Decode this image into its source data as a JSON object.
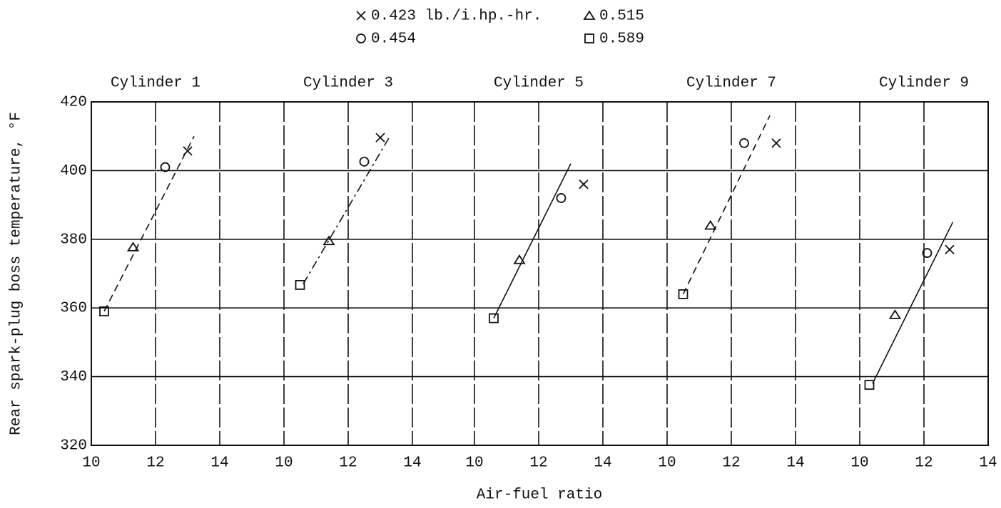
{
  "chart_data": [
    {
      "type": "scatter",
      "title": "Cylinder 1",
      "ylabel": "Rear spark-plug boss temperature, °F",
      "xlabel": "Air-fuel ratio",
      "xlim": [
        10,
        14
      ],
      "xticks": [
        10,
        12,
        14
      ],
      "ylim": [
        320,
        420
      ],
      "yticks": [
        320,
        340,
        360,
        380,
        400,
        420
      ],
      "grid": true,
      "series": [
        {
          "name": "0.423 lb./i.hp.-hr.",
          "marker": "x",
          "x": [
            13.0
          ],
          "values": [
            405.7
          ]
        },
        {
          "name": "0.454",
          "marker": "o",
          "x": [
            12.3
          ],
          "values": [
            401
          ]
        },
        {
          "name": "0.515",
          "marker": "triangle",
          "x": [
            11.3
          ],
          "values": [
            377.7
          ]
        },
        {
          "name": "0.589",
          "marker": "square",
          "x": [
            10.4
          ],
          "values": [
            359
          ]
        }
      ],
      "fit": {
        "x": [
          10.4,
          13.2
        ],
        "values": [
          359,
          410
        ],
        "style": "dashed"
      }
    },
    {
      "type": "scatter",
      "title": "Cylinder 3",
      "xlim": [
        10,
        14
      ],
      "xticks": [
        10,
        12,
        14
      ],
      "ylim": [
        320,
        420
      ],
      "yticks": [
        320,
        340,
        360,
        380,
        400,
        420
      ],
      "grid": true,
      "series": [
        {
          "marker": "x",
          "x": [
            13.0
          ],
          "values": [
            409.6
          ]
        },
        {
          "marker": "o",
          "x": [
            12.5
          ],
          "values": [
            402.6
          ]
        },
        {
          "marker": "triangle",
          "x": [
            11.4
          ],
          "values": [
            379.5
          ]
        },
        {
          "marker": "square",
          "x": [
            10.5
          ],
          "values": [
            366.7
          ]
        }
      ],
      "fit": {
        "x": [
          10.6,
          13.3
        ],
        "values": [
          367,
          410
        ],
        "style": "dashdot"
      }
    },
    {
      "type": "scatter",
      "title": "Cylinder 5",
      "xlim": [
        10,
        14
      ],
      "xticks": [
        10,
        12,
        14
      ],
      "ylim": [
        320,
        420
      ],
      "yticks": [
        320,
        340,
        360,
        380,
        400,
        420
      ],
      "grid": true,
      "series": [
        {
          "marker": "x",
          "x": [
            13.4
          ],
          "values": [
            396
          ]
        },
        {
          "marker": "o",
          "x": [
            12.7
          ],
          "values": [
            392
          ]
        },
        {
          "marker": "triangle",
          "x": [
            11.4
          ],
          "values": [
            374
          ]
        },
        {
          "marker": "square",
          "x": [
            10.6
          ],
          "values": [
            357
          ]
        }
      ],
      "fit": {
        "x": [
          10.6,
          13.0
        ],
        "values": [
          357,
          402
        ],
        "style": "solid"
      }
    },
    {
      "type": "scatter",
      "title": "Cylinder 7",
      "xlim": [
        10,
        14
      ],
      "xticks": [
        10,
        12,
        14
      ],
      "ylim": [
        320,
        420
      ],
      "yticks": [
        320,
        340,
        360,
        380,
        400,
        420
      ],
      "grid": true,
      "series": [
        {
          "marker": "x",
          "x": [
            13.4
          ],
          "values": [
            408
          ]
        },
        {
          "marker": "o",
          "x": [
            12.4
          ],
          "values": [
            408
          ]
        },
        {
          "marker": "triangle",
          "x": [
            11.35
          ],
          "values": [
            384
          ]
        },
        {
          "marker": "square",
          "x": [
            10.5
          ],
          "values": [
            364
          ]
        }
      ],
      "fit": {
        "x": [
          10.5,
          13.2
        ],
        "values": [
          364,
          416
        ],
        "style": "dashed"
      }
    },
    {
      "type": "scatter",
      "title": "Cylinder 9",
      "xlim": [
        10,
        14
      ],
      "xticks": [
        10,
        12,
        14
      ],
      "ylim": [
        320,
        420
      ],
      "yticks": [
        320,
        340,
        360,
        380,
        400,
        420
      ],
      "grid": true,
      "series": [
        {
          "marker": "x",
          "x": [
            12.8
          ],
          "values": [
            377
          ]
        },
        {
          "marker": "o",
          "x": [
            12.1
          ],
          "values": [
            376
          ]
        },
        {
          "marker": "triangle",
          "x": [
            11.1
          ],
          "values": [
            358
          ]
        },
        {
          "marker": "square",
          "x": [
            10.3
          ],
          "values": [
            337.6
          ]
        }
      ],
      "fit": {
        "x": [
          10.4,
          12.9
        ],
        "values": [
          338,
          385
        ],
        "style": "solid"
      }
    }
  ]
}
